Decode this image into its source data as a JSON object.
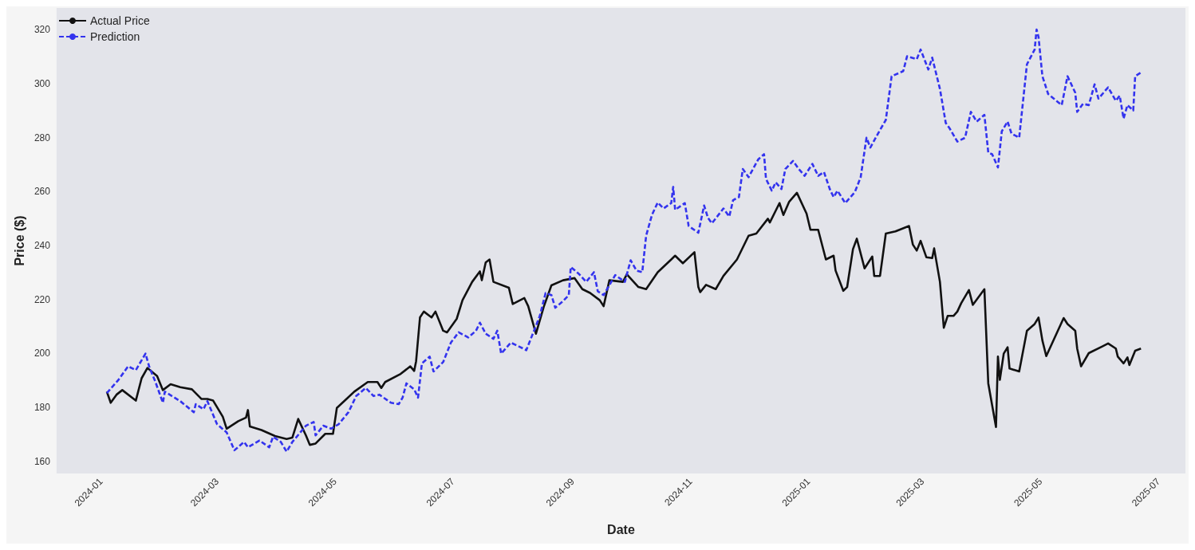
{
  "chart_data": {
    "type": "line",
    "xlabel": "Date",
    "ylabel": "Price ($)",
    "xlim": [
      "2023-12-09",
      "2025-07-15"
    ],
    "ylim": [
      155.5,
      328
    ],
    "xticks": [
      "2024-01",
      "2024-03",
      "2024-05",
      "2024-07",
      "2024-09",
      "2024-11",
      "2025-01",
      "2025-03",
      "2025-05",
      "2025-07"
    ],
    "yticks": [
      160,
      180,
      200,
      220,
      240,
      260,
      280,
      300,
      320
    ],
    "grid": false,
    "legend": "top left",
    "marker": "none",
    "series": [
      {
        "name": "Actual Price",
        "color": "#111111",
        "line_style": "solid",
        "x": [
          "2024-01-04",
          "2024-01-06",
          "2024-01-09",
          "2024-01-12",
          "2024-01-19",
          "2024-01-22",
          "2024-01-25",
          "2024-01-30",
          "2024-02-02",
          "2024-02-06",
          "2024-02-11",
          "2024-02-17",
          "2024-02-22",
          "2024-02-25",
          "2024-02-28",
          "2024-03-04",
          "2024-03-06",
          "2024-03-12",
          "2024-03-16",
          "2024-03-17",
          "2024-03-18",
          "2024-03-24",
          "2024-03-31",
          "2024-04-06",
          "2024-04-09",
          "2024-04-12",
          "2024-04-16",
          "2024-04-18",
          "2024-04-21",
          "2024-04-26",
          "2024-04-30",
          "2024-05-02",
          "2024-05-07",
          "2024-05-11",
          "2024-05-18",
          "2024-05-23",
          "2024-05-25",
          "2024-05-27",
          "2024-06-04",
          "2024-06-09",
          "2024-06-11",
          "2024-06-12",
          "2024-06-14",
          "2024-06-16",
          "2024-06-20",
          "2024-06-22",
          "2024-06-26",
          "2024-06-28",
          "2024-07-03",
          "2024-07-06",
          "2024-07-11",
          "2024-07-15",
          "2024-07-16",
          "2024-07-18",
          "2024-07-20",
          "2024-07-22",
          "2024-07-30",
          "2024-08-01",
          "2024-08-07",
          "2024-08-09",
          "2024-08-13",
          "2024-08-17",
          "2024-08-21",
          "2024-08-27",
          "2024-09-02",
          "2024-09-06",
          "2024-09-10",
          "2024-09-15",
          "2024-09-17",
          "2024-09-20",
          "2024-09-27",
          "2024-09-29",
          "2024-10-05",
          "2024-10-09",
          "2024-10-15",
          "2024-10-22",
          "2024-10-24",
          "2024-10-28",
          "2024-11-03",
          "2024-11-05",
          "2024-11-06",
          "2024-11-09",
          "2024-11-14",
          "2024-11-18",
          "2024-11-25",
          "2024-12-01",
          "2024-12-05",
          "2024-12-11",
          "2024-12-12",
          "2024-12-17",
          "2024-12-19",
          "2024-12-22",
          "2024-12-26",
          "2024-12-31",
          "2025-01-02",
          "2025-01-06",
          "2025-01-10",
          "2025-01-14",
          "2025-01-15",
          "2025-01-19",
          "2025-01-21",
          "2025-01-24",
          "2025-01-26",
          "2025-01-30",
          "2025-02-03",
          "2025-02-04",
          "2025-02-07",
          "2025-02-10",
          "2025-02-15",
          "2025-02-22",
          "2025-02-24",
          "2025-02-26",
          "2025-02-28",
          "2025-03-03",
          "2025-03-06",
          "2025-03-07",
          "2025-03-10",
          "2025-03-12",
          "2025-03-14",
          "2025-03-17",
          "2025-03-19",
          "2025-03-21",
          "2025-03-25",
          "2025-03-27",
          "2025-04-02",
          "2025-04-04",
          "2025-04-08",
          "2025-04-09",
          "2025-04-10",
          "2025-04-12",
          "2025-04-14",
          "2025-04-15",
          "2025-04-20",
          "2025-04-24",
          "2025-04-28",
          "2025-04-30",
          "2025-05-02",
          "2025-05-04",
          "2025-05-13",
          "2025-05-15",
          "2025-05-19",
          "2025-05-20",
          "2025-05-22",
          "2025-05-26",
          "2025-06-02",
          "2025-06-05",
          "2025-06-09",
          "2025-06-10",
          "2025-06-13",
          "2025-06-15",
          "2025-06-16",
          "2025-06-19",
          "2025-06-22"
        ],
        "values": [
          185.8,
          181.7,
          184.7,
          186.4,
          182.5,
          190.8,
          194.6,
          191.6,
          186.4,
          188.6,
          187.5,
          186.7,
          183.1,
          183.1,
          182.5,
          176.5,
          172.1,
          174.9,
          176.2,
          179.0,
          172.9,
          171.6,
          169.4,
          168.3,
          168.8,
          175.7,
          169.6,
          166.1,
          166.6,
          170.2,
          170.2,
          179.8,
          183.1,
          185.8,
          189.4,
          189.4,
          187.2,
          189.4,
          192.4,
          195.2,
          193.5,
          197.1,
          213.3,
          215.5,
          213.3,
          215.5,
          208.4,
          207.8,
          212.8,
          219.7,
          226.5,
          230.4,
          227.1,
          233.7,
          234.8,
          226.5,
          224.3,
          218.3,
          220.5,
          217.5,
          207.3,
          217.2,
          225.2,
          227.1,
          227.9,
          223.8,
          222.4,
          219.7,
          217.5,
          227.1,
          226.5,
          229.3,
          224.6,
          223.8,
          230.1,
          234.8,
          236.2,
          233.4,
          237.5,
          224.6,
          222.7,
          225.4,
          223.8,
          228.7,
          234.8,
          243.6,
          244.4,
          249.9,
          248.5,
          255.7,
          251.3,
          256.2,
          259.5,
          251.8,
          245.8,
          245.8,
          234.8,
          236.2,
          230.7,
          223.2,
          224.6,
          238.6,
          242.5,
          231.5,
          235.9,
          228.7,
          228.7,
          244.4,
          245.2,
          247.2,
          240.3,
          238.1,
          241.7,
          235.6,
          235.3,
          238.9,
          226.5,
          209.5,
          213.9,
          213.9,
          215.5,
          218.6,
          223.5,
          218.0,
          223.8,
          188.9,
          172.7,
          198.8,
          190.2,
          199.9,
          202.3,
          194.4,
          193.3,
          208.4,
          210.9,
          213.3,
          204.8,
          199.0,
          213.1,
          210.9,
          208.4,
          201.8,
          195.2,
          200.1,
          202.6,
          203.7,
          201.8,
          198.8,
          196.3,
          198.5,
          195.7,
          201.0,
          201.8
        ]
      },
      {
        "name": "Prediction",
        "color": "#3333ee",
        "line_style": "dashed",
        "x": [
          "2024-01-04",
          "2024-01-10",
          "2024-01-15",
          "2024-01-19",
          "2024-01-24",
          "2024-01-26",
          "2024-01-29",
          "2024-02-02",
          "2024-02-03",
          "2024-02-11",
          "2024-02-18",
          "2024-02-19",
          "2024-02-23",
          "2024-02-25",
          "2024-03-01",
          "2024-03-06",
          "2024-03-10",
          "2024-03-15",
          "2024-03-17",
          "2024-03-23",
          "2024-03-28",
          "2024-03-30",
          "2024-04-03",
          "2024-04-06",
          "2024-04-09",
          "2024-04-16",
          "2024-04-20",
          "2024-04-21",
          "2024-04-25",
          "2024-04-29",
          "2024-05-03",
          "2024-05-08",
          "2024-05-12",
          "2024-05-17",
          "2024-05-21",
          "2024-05-24",
          "2024-05-30",
          "2024-06-03",
          "2024-06-05",
          "2024-06-07",
          "2024-06-11",
          "2024-06-13",
          "2024-06-15",
          "2024-06-19",
          "2024-06-21",
          "2024-06-26",
          "2024-06-30",
          "2024-07-04",
          "2024-07-09",
          "2024-07-13",
          "2024-07-15",
          "2024-07-18",
          "2024-07-22",
          "2024-07-24",
          "2024-07-26",
          "2024-07-31",
          "2024-08-05",
          "2024-08-08",
          "2024-08-12",
          "2024-08-15",
          "2024-08-18",
          "2024-08-21",
          "2024-08-23",
          "2024-08-27",
          "2024-08-30",
          "2024-08-31",
          "2024-09-04",
          "2024-09-08",
          "2024-09-12",
          "2024-09-14",
          "2024-09-17",
          "2024-09-23",
          "2024-09-28",
          "2024-10-01",
          "2024-10-04",
          "2024-10-07",
          "2024-10-09",
          "2024-10-12",
          "2024-10-15",
          "2024-10-18",
          "2024-10-22",
          "2024-10-23",
          "2024-10-24",
          "2024-10-29",
          "2024-10-31",
          "2024-11-05",
          "2024-11-08",
          "2024-11-10",
          "2024-11-12",
          "2024-11-18",
          "2024-11-21",
          "2024-11-23",
          "2024-11-26",
          "2024-11-28",
          "2024-12-01",
          "2024-12-06",
          "2024-12-09",
          "2024-12-10",
          "2024-12-13",
          "2024-12-15",
          "2024-12-18",
          "2024-12-20",
          "2024-12-24",
          "2024-12-27",
          "2024-12-30",
          "2025-01-03",
          "2025-01-06",
          "2025-01-09",
          "2025-01-12",
          "2025-01-14",
          "2025-01-16",
          "2025-01-20",
          "2025-01-25",
          "2025-01-28",
          "2025-01-31",
          "2025-02-02",
          "2025-02-06",
          "2025-02-10",
          "2025-02-13",
          "2025-02-19",
          "2025-02-21",
          "2025-02-26",
          "2025-02-28",
          "2025-03-04",
          "2025-03-06",
          "2025-03-10",
          "2025-03-13",
          "2025-03-15",
          "2025-03-19",
          "2025-03-23",
          "2025-03-26",
          "2025-03-29",
          "2025-04-02",
          "2025-04-04",
          "2025-04-06",
          "2025-04-09",
          "2025-04-11",
          "2025-04-14",
          "2025-04-16",
          "2025-04-20",
          "2025-04-24",
          "2025-04-28",
          "2025-04-29",
          "2025-04-30",
          "2025-05-02",
          "2025-05-05",
          "2025-05-12",
          "2025-05-15",
          "2025-05-19",
          "2025-05-20",
          "2025-05-23",
          "2025-05-26",
          "2025-05-29",
          "2025-05-31",
          "2025-06-05",
          "2025-06-09",
          "2025-06-11",
          "2025-06-13",
          "2025-06-15",
          "2025-06-18",
          "2025-06-19",
          "2025-06-22"
        ],
        "values": [
          185.3,
          190.2,
          195.2,
          193.8,
          199.9,
          194.9,
          189.7,
          181.7,
          185.8,
          182.3,
          178.2,
          181.2,
          179.3,
          182.3,
          173.8,
          170.7,
          164.1,
          167.2,
          165.2,
          167.7,
          165.2,
          169.1,
          167.2,
          163.6,
          167.2,
          173.2,
          174.6,
          169.6,
          173.2,
          172.1,
          173.8,
          178.2,
          184.2,
          187.2,
          184.2,
          184.7,
          181.7,
          181.2,
          183.6,
          188.9,
          186.7,
          183.6,
          196.3,
          198.8,
          193.3,
          196.8,
          204.0,
          207.8,
          205.9,
          208.4,
          211.4,
          207.3,
          205.4,
          208.4,
          199.9,
          204.0,
          202.3,
          201.2,
          208.4,
          213.9,
          222.4,
          221.6,
          216.9,
          219.4,
          221.6,
          232.0,
          229.6,
          226.5,
          230.1,
          223.0,
          221.6,
          229.0,
          226.5,
          234.5,
          230.7,
          230.1,
          243.6,
          251.3,
          255.9,
          253.7,
          255.7,
          261.7,
          253.2,
          255.7,
          247.2,
          244.7,
          254.8,
          250.2,
          248.2,
          253.7,
          250.7,
          256.8,
          257.9,
          268.3,
          265.3,
          271.9,
          273.8,
          264.7,
          260.3,
          263.4,
          260.9,
          268.3,
          271.3,
          268.3,
          265.8,
          270.2,
          265.8,
          267.2,
          260.9,
          257.9,
          260.3,
          255.7,
          259.8,
          265.3,
          279.9,
          276.3,
          281.5,
          286.5,
          302.7,
          304.6,
          310.1,
          309.0,
          312.6,
          305.2,
          309.6,
          298.0,
          285.4,
          283.4,
          278.5,
          279.9,
          289.5,
          285.9,
          288.4,
          274.4,
          273.8,
          268.9,
          282.3,
          285.9,
          281.5,
          279.9,
          307.1,
          312.6,
          320.0,
          317.3,
          302.7,
          296.1,
          292.0,
          302.7,
          296.6,
          289.5,
          292.5,
          292.0,
          299.7,
          294.4,
          298.6,
          293.6,
          295.5,
          287.0,
          292.0,
          290.0,
          302.7,
          304.1
        ]
      }
    ]
  }
}
